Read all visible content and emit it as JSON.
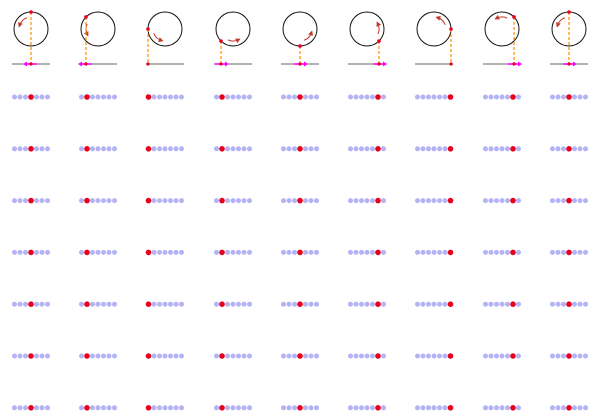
{
  "colors": {
    "background": "#ffffff",
    "circle": "#111111",
    "axis": "#333333",
    "marker": "#e8001c",
    "projection": "#ff8c00",
    "velocity": "#ff00ff",
    "rotation_arrow": "#c0392b",
    "lattice_dot": "#b3b3f5",
    "highlighted_dot": "#e8001c"
  },
  "frames": [
    {
      "phase_deg": 90,
      "velocity_dir": -1,
      "lattice_index": 3
    },
    {
      "phase_deg": 135,
      "velocity_dir": -1,
      "lattice_index": 1
    },
    {
      "phase_deg": 180,
      "velocity_dir": 0,
      "lattice_index": 0
    },
    {
      "phase_deg": 225,
      "velocity_dir": 1,
      "lattice_index": 1
    },
    {
      "phase_deg": 270,
      "velocity_dir": 1,
      "lattice_index": 3
    },
    {
      "phase_deg": 315,
      "velocity_dir": 1,
      "lattice_index": 5
    },
    {
      "phase_deg": 0,
      "velocity_dir": 0,
      "lattice_index": 6
    },
    {
      "phase_deg": 45,
      "velocity_dir": 1,
      "lattice_index": 5
    },
    {
      "phase_deg": 90,
      "velocity_dir": 1,
      "lattice_index": 3
    }
  ],
  "lattice": {
    "dots_per_chain": 7,
    "rows": 7
  }
}
